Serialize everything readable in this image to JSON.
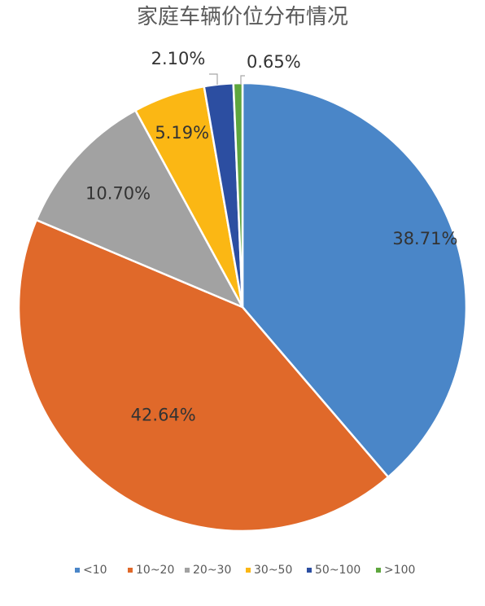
{
  "chart_data": {
    "type": "pie",
    "title": "家庭车辆价位分布情况",
    "categories": [
      "<10",
      "10~20",
      "20~30",
      "30~50",
      "50~100",
      ">100"
    ],
    "values": [
      38.71,
      42.64,
      10.7,
      5.19,
      2.1,
      0.65
    ],
    "labels": [
      "38.71%",
      "42.64%",
      "10.70%",
      "5.19%",
      "2.10%",
      "0.65%"
    ],
    "colors": [
      "#4a86c8",
      "#e0692a",
      "#a2a2a2",
      "#fbb714",
      "#2c4ea1",
      "#5ea63e"
    ],
    "legend_position": "bottom",
    "start_angle_deg": 0,
    "direction": "clockwise"
  }
}
